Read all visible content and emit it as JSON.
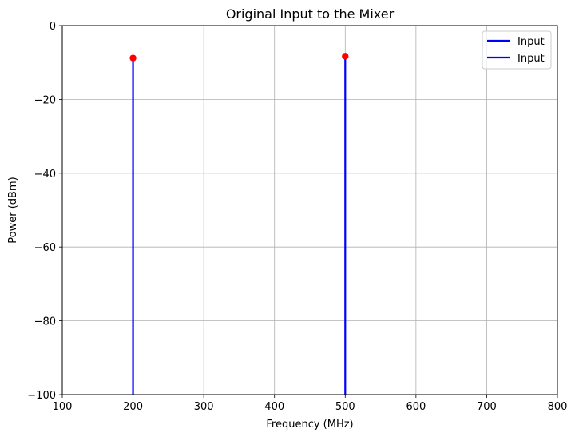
{
  "chart_data": {
    "type": "stem",
    "title": "Original Input to the Mixer",
    "xlabel": "Frequency (MHz)",
    "ylabel": "Power (dBm)",
    "xlim": [
      100,
      800
    ],
    "ylim": [
      -100,
      0
    ],
    "xticks": [
      100,
      200,
      300,
      400,
      500,
      600,
      700,
      800
    ],
    "yticks": [
      0,
      -20,
      -40,
      -60,
      -80,
      -100
    ],
    "xtick_labels": [
      "100",
      "200",
      "300",
      "400",
      "500",
      "600",
      "700",
      "800"
    ],
    "ytick_labels": [
      "0",
      "−20",
      "−40",
      "−60",
      "−80",
      "−100"
    ],
    "grid": true,
    "legend_position": "top-right",
    "series": [
      {
        "name": "Input",
        "x": [
          200
        ],
        "y": [
          -8.8
        ],
        "line_color": "#0000ff",
        "marker_color": "#ff0000"
      },
      {
        "name": "Input",
        "x": [
          500
        ],
        "y": [
          -8.3
        ],
        "line_color": "#0000ff",
        "marker_color": "#ff0000"
      }
    ]
  }
}
